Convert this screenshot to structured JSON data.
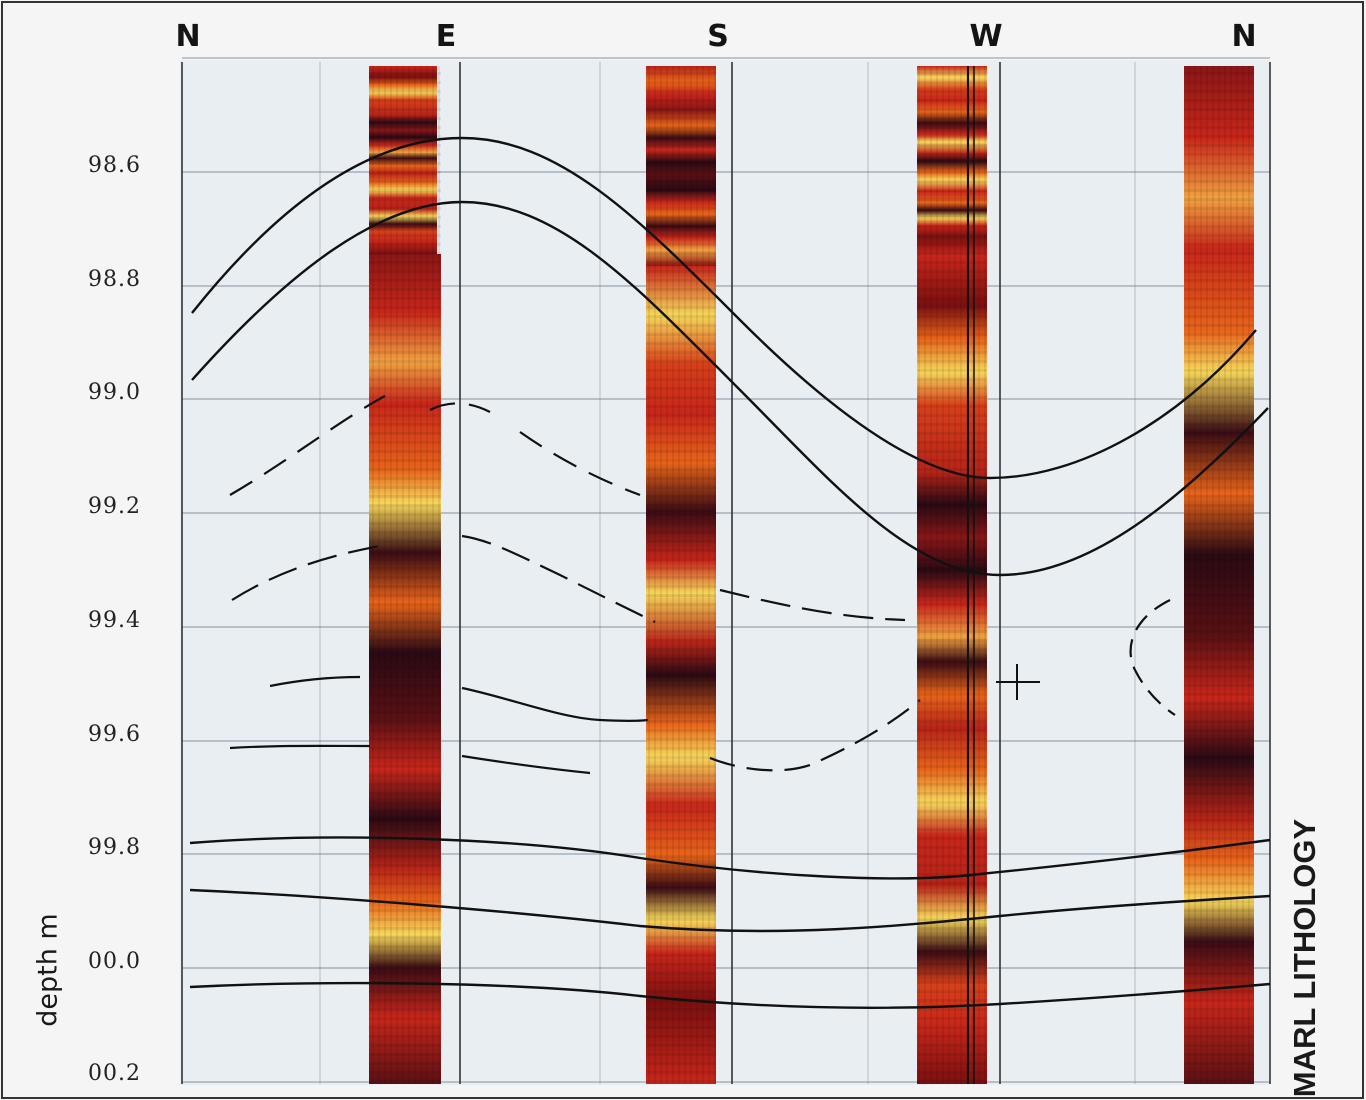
{
  "figure": {
    "directions": [
      "N",
      "E",
      "S",
      "W",
      "N"
    ],
    "depth_ticks": [
      "98.6",
      "98.8",
      "99.0",
      "99.2",
      "99.4",
      "99.6",
      "99.8",
      "00.0",
      "00.2"
    ],
    "depth_axis_label": "depth m",
    "lithology_label": "MARL LITHOLOGY"
  },
  "colors": {
    "image_dark": "#2a0a14",
    "image_red": "#c8261a",
    "image_orange": "#e8641a",
    "image_yellow": "#f6d65a",
    "grid": "#5a6a7a",
    "background": "#f4f5f4"
  }
}
